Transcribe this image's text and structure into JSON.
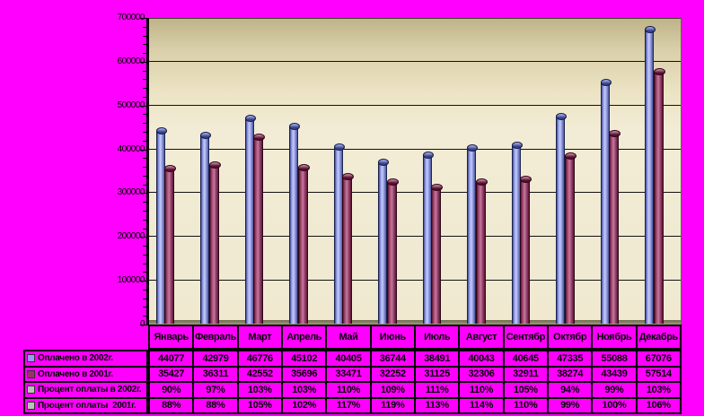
{
  "colors": {
    "background": "#FF00FF",
    "series_paid_2002": "#9999FF",
    "series_paid_2001": "#993366",
    "percent_swatch": "#C0C0C0",
    "plot_wall_top": "#BFB388",
    "plot_wall_bottom": "#F2ECD6",
    "plot_floor": "#9A9478"
  },
  "chart_data": {
    "type": "bar",
    "title": "",
    "xlabel": "",
    "ylabel": "",
    "categories": [
      "Январь",
      "Февраль",
      "Март",
      "Апрель",
      "Май",
      "Июнь",
      "Июль",
      "Август",
      "Сентябр",
      "Октябр",
      "Ноябрь",
      "Декабрь"
    ],
    "series": [
      {
        "name": "Оплачено в 2002г.",
        "swatch": "#9999FF",
        "plotted": true,
        "values": [
          44077,
          42979,
          46776,
          45102,
          40405,
          36744,
          38491,
          40043,
          40645,
          47335,
          55088,
          67076
        ]
      },
      {
        "name": "Оплачено в 2001г.",
        "swatch": "#993366",
        "plotted": true,
        "values": [
          35427,
          36311,
          42552,
          35696,
          33471,
          32252,
          31125,
          32306,
          32911,
          38274,
          43439,
          57514
        ]
      },
      {
        "name": "Процент оплаты в 2002г.",
        "swatch": "#C0C0C0",
        "plotted": false,
        "values": [
          "90%",
          "97%",
          "103%",
          "103%",
          "110%",
          "109%",
          "111%",
          "110%",
          "105%",
          "94%",
          "99%",
          "103%"
        ]
      },
      {
        "name": "Процент оплаты  2001г.",
        "swatch": "#C0C0C0",
        "plotted": false,
        "values": [
          "88%",
          "88%",
          "105%",
          "102%",
          "117%",
          "119%",
          "113%",
          "114%",
          "110%",
          "99%",
          "100%",
          "106%"
        ]
      }
    ],
    "ylim": [
      0,
      700000
    ],
    "y_ticks": [
      "0",
      "100000",
      "200000",
      "300000",
      "400000",
      "500000",
      "600000",
      "700000"
    ],
    "bar_value_scale": 10,
    "grid": true,
    "legend_position": "table-left-column"
  }
}
